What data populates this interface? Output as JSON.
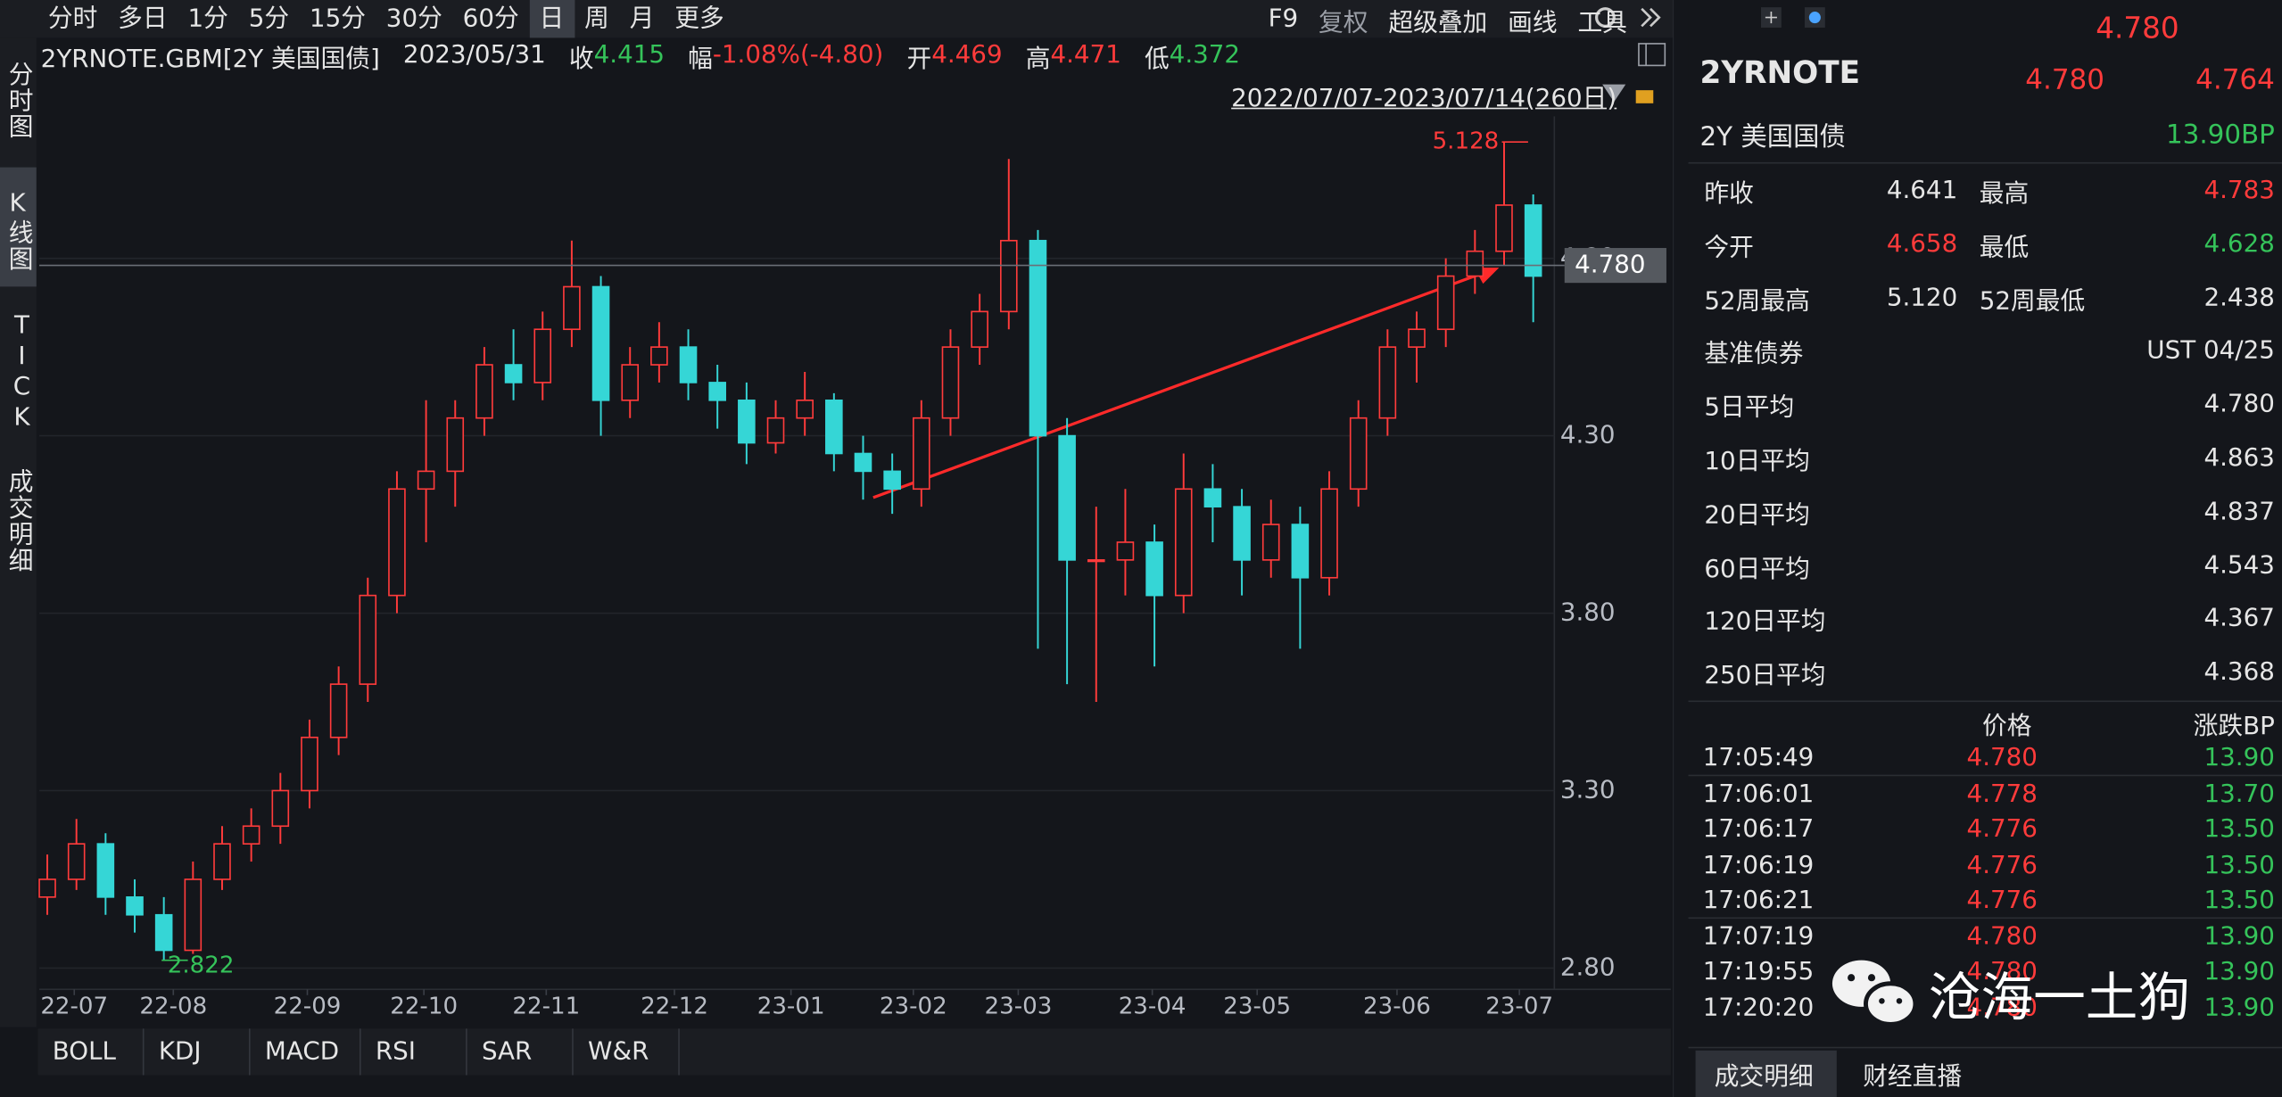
{
  "toolbar": {
    "periods": [
      "分时",
      "多日",
      "1分",
      "5分",
      "15分",
      "30分",
      "60分",
      "日",
      "周",
      "月",
      "更多"
    ],
    "tools": [
      "F9",
      "复权",
      "超级叠加",
      "画线",
      "工具"
    ]
  },
  "side_tabs": [
    "分时图",
    "K线图",
    "TICK",
    "成交明细"
  ],
  "info": {
    "symbol": "2YRNOTE.GBM[2Y 美国国债]",
    "date": "2023/05/31",
    "close_label": "收",
    "close": "4.415",
    "change_label": "幅",
    "change": "-1.08%(-4.80)",
    "open_label": "开",
    "open": "4.469",
    "high_label": "高",
    "high": "4.471",
    "low_label": "低",
    "low": "4.372"
  },
  "range_label": "2022/07/07-2023/07/14(260日)",
  "chart_data": {
    "type": "candlestick",
    "up_color": "#ff3b3b",
    "down_color": "#35d6d6",
    "xlim": [
      0,
      260
    ],
    "ylim": [
      2.74,
      5.2
    ],
    "grid": true,
    "xticks": [
      {
        "value": 6,
        "label": "22-07"
      },
      {
        "value": 23,
        "label": "22-08"
      },
      {
        "value": 46,
        "label": "22-09"
      },
      {
        "value": 66,
        "label": "22-10"
      },
      {
        "value": 87,
        "label": "22-11"
      },
      {
        "value": 109,
        "label": "22-12"
      },
      {
        "value": 129,
        "label": "23-01"
      },
      {
        "value": 150,
        "label": "23-02"
      },
      {
        "value": 168,
        "label": "23-03"
      },
      {
        "value": 191,
        "label": "23-04"
      },
      {
        "value": 209,
        "label": "23-05"
      },
      {
        "value": 233,
        "label": "23-06"
      },
      {
        "value": 254,
        "label": "23-07"
      }
    ],
    "yticks": [
      {
        "value": 2.8,
        "label": "2.80"
      },
      {
        "value": 3.3,
        "label": "3.30"
      },
      {
        "value": 3.8,
        "label": "3.80"
      },
      {
        "value": 4.3,
        "label": "4.30"
      },
      {
        "value": 4.8,
        "label": "4.80"
      }
    ],
    "x": [
      0,
      5,
      10,
      15,
      20,
      25,
      30,
      35,
      40,
      45,
      50,
      55,
      60,
      65,
      70,
      75,
      80,
      85,
      90,
      95,
      100,
      105,
      110,
      115,
      120,
      125,
      130,
      135,
      140,
      145,
      150,
      155,
      160,
      165,
      170,
      175,
      180,
      185,
      190,
      195,
      200,
      205,
      210,
      215,
      220,
      225,
      230,
      235,
      240,
      245,
      250,
      255
    ],
    "open": [
      3.0,
      3.05,
      3.15,
      3.0,
      2.95,
      2.85,
      3.05,
      3.15,
      3.2,
      3.3,
      3.45,
      3.6,
      3.85,
      4.15,
      4.2,
      4.35,
      4.5,
      4.45,
      4.6,
      4.72,
      4.4,
      4.5,
      4.55,
      4.45,
      4.4,
      4.28,
      4.35,
      4.4,
      4.25,
      4.2,
      4.15,
      4.35,
      4.55,
      4.65,
      4.85,
      4.3,
      3.95,
      3.95,
      4.0,
      3.85,
      4.15,
      4.1,
      3.95,
      4.05,
      3.9,
      4.15,
      4.35,
      4.55,
      4.6,
      4.75,
      4.82,
      4.95
    ],
    "high": [
      3.12,
      3.22,
      3.18,
      3.05,
      3.0,
      3.1,
      3.2,
      3.25,
      3.35,
      3.5,
      3.65,
      3.9,
      4.2,
      4.4,
      4.4,
      4.55,
      4.6,
      4.65,
      4.85,
      4.75,
      4.55,
      4.62,
      4.6,
      4.5,
      4.45,
      4.4,
      4.48,
      4.42,
      4.3,
      4.25,
      4.4,
      4.6,
      4.7,
      5.08,
      4.88,
      4.35,
      4.1,
      4.15,
      4.05,
      4.25,
      4.22,
      4.15,
      4.12,
      4.1,
      4.2,
      4.4,
      4.6,
      4.65,
      4.8,
      4.88,
      5.128,
      4.98
    ],
    "low": [
      2.95,
      3.02,
      2.95,
      2.9,
      2.822,
      2.84,
      3.02,
      3.1,
      3.15,
      3.25,
      3.4,
      3.55,
      3.8,
      4.0,
      4.1,
      4.3,
      4.4,
      4.4,
      4.55,
      4.3,
      4.35,
      4.45,
      4.4,
      4.32,
      4.22,
      4.25,
      4.3,
      4.2,
      4.12,
      4.08,
      4.1,
      4.3,
      4.5,
      4.6,
      3.7,
      3.6,
      3.55,
      3.85,
      3.65,
      3.8,
      4.0,
      3.85,
      3.9,
      3.7,
      3.85,
      4.1,
      4.3,
      4.45,
      4.55,
      4.7,
      4.78,
      4.62
    ],
    "close": [
      3.05,
      3.15,
      3.0,
      2.95,
      2.85,
      3.05,
      3.15,
      3.2,
      3.3,
      3.45,
      3.6,
      3.85,
      4.15,
      4.2,
      4.35,
      4.5,
      4.45,
      4.6,
      4.72,
      4.4,
      4.5,
      4.55,
      4.45,
      4.4,
      4.28,
      4.35,
      4.4,
      4.25,
      4.2,
      4.15,
      4.35,
      4.55,
      4.65,
      4.85,
      4.3,
      3.95,
      3.95,
      4.0,
      3.85,
      4.15,
      4.1,
      3.95,
      4.05,
      3.9,
      4.15,
      4.35,
      4.55,
      4.6,
      4.75,
      4.82,
      4.95,
      4.75
    ],
    "current_price": {
      "value": 4.78,
      "label": "4.780"
    },
    "annotations": [
      {
        "x": 250,
        "value": 5.128,
        "color": "#ff3b3b"
      },
      {
        "x": 20,
        "value": 2.822,
        "color": "#35c35a"
      }
    ]
  },
  "indicators": [
    "BOLL",
    "KDJ",
    "MACD",
    "RSI",
    "SAR",
    "W&R"
  ],
  "quote": {
    "top_price": "4.780",
    "symbol": "2YRNOTE",
    "bid": "4.780",
    "ask": "4.764",
    "name": "2Y 美国国债",
    "change_bp": "13.90BP"
  },
  "stats": [
    [
      {
        "text": "昨收"
      },
      {
        "text": "4.641"
      },
      {
        "text": "最高"
      },
      {
        "text": "4.783",
        "color": "#ff3b3b"
      }
    ],
    [
      {
        "text": "今开"
      },
      {
        "text": "4.658",
        "color": "#ff3b3b"
      },
      {
        "text": "最低"
      },
      {
        "text": "4.628",
        "color": "#35c35a"
      }
    ],
    [
      {
        "text": "52周最高"
      },
      {
        "text": "5.120"
      },
      {
        "text": "52周最低"
      },
      {
        "text": "2.438"
      }
    ],
    [
      {
        "text": "基准债券"
      },
      {
        "text": "UST 04/25"
      }
    ],
    [
      {
        "text": "5日平均"
      },
      {
        "text": "4.780"
      }
    ],
    [
      {
        "text": "10日平均"
      },
      {
        "text": "4.863"
      }
    ],
    [
      {
        "text": "20日平均"
      },
      {
        "text": "4.837"
      }
    ],
    [
      {
        "text": "60日平均"
      },
      {
        "text": "4.543"
      }
    ],
    [
      {
        "text": "120日平均"
      },
      {
        "text": "4.367"
      }
    ],
    [
      {
        "text": "250日平均"
      },
      {
        "text": "4.368"
      }
    ]
  ],
  "trades": {
    "headers": [
      "价格",
      "涨跌BP"
    ],
    "rows": [
      {
        "time": "17:05:49",
        "price": "4.780",
        "change": "13.90"
      },
      {
        "time": "17:06:01",
        "price": "4.778",
        "change": "13.70"
      },
      {
        "time": "17:06:17",
        "price": "4.776",
        "change": "13.50"
      },
      {
        "time": "17:06:19",
        "price": "4.776",
        "change": "13.50"
      },
      {
        "time": "17:06:21",
        "price": "4.776",
        "change": "13.50"
      },
      {
        "time": "17:07:19",
        "price": "4.780",
        "change": "13.90"
      },
      {
        "time": "17:19:55",
        "price": "4.780",
        "change": "13.90"
      },
      {
        "time": "17:20:20",
        "price": "4.780",
        "change": "13.90"
      }
    ]
  },
  "bottom_tabs": [
    "成交明细",
    "财经直播"
  ],
  "watermark": "沧海一土狗"
}
